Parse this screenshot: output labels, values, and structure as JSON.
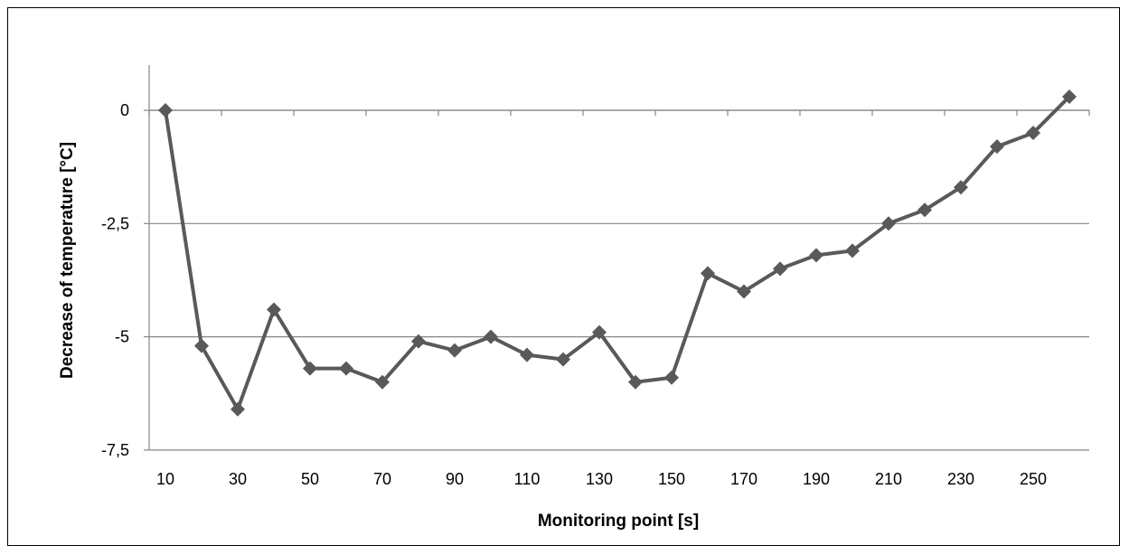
{
  "chart_data": {
    "type": "line",
    "title": "",
    "xlabel": "Monitoring point [s]",
    "ylabel": "Decrease of temperature [°C]",
    "x": [
      10,
      20,
      30,
      40,
      50,
      60,
      70,
      80,
      90,
      100,
      110,
      120,
      130,
      140,
      150,
      160,
      170,
      180,
      190,
      200,
      210,
      220,
      230,
      240,
      250,
      260
    ],
    "series": [
      {
        "values": [
          0,
          -5.2,
          -6.6,
          -4.4,
          -5.7,
          -5.7,
          -6.0,
          -5.1,
          -5.3,
          -5.0,
          -5.4,
          -5.5,
          -4.9,
          -6.0,
          -5.9,
          -3.6,
          -4.0,
          -3.5,
          -3.2,
          -3.1,
          -2.5,
          -2.2,
          -1.7,
          -0.8,
          -0.5,
          0.3
        ],
        "color": "#595959"
      }
    ],
    "x_tick_labels": [
      "10",
      "30",
      "50",
      "70",
      "90",
      "110",
      "130",
      "150",
      "170",
      "190",
      "210",
      "230",
      "250"
    ],
    "y_tick_labels": [
      "0",
      "-2,5",
      "-5",
      "-7,5"
    ],
    "y_ticks": [
      0,
      -2.5,
      -5,
      -7.5
    ],
    "ylim": [
      -7.5,
      1
    ],
    "grid": "horizontal",
    "legend": "none",
    "colors": {
      "line": "#595959",
      "grid": "#868686",
      "axis": "#868686"
    }
  }
}
